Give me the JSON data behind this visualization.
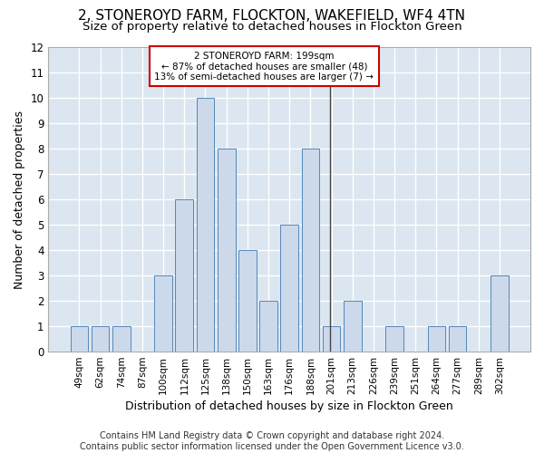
{
  "title": "2, STONEROYD FARM, FLOCKTON, WAKEFIELD, WF4 4TN",
  "subtitle": "Size of property relative to detached houses in Flockton Green",
  "xlabel": "Distribution of detached houses by size in Flockton Green",
  "ylabel": "Number of detached properties",
  "footer": "Contains HM Land Registry data © Crown copyright and database right 2024.\nContains public sector information licensed under the Open Government Licence v3.0.",
  "categories": [
    "49sqm",
    "62sqm",
    "74sqm",
    "87sqm",
    "100sqm",
    "112sqm",
    "125sqm",
    "138sqm",
    "150sqm",
    "163sqm",
    "176sqm",
    "188sqm",
    "201sqm",
    "213sqm",
    "226sqm",
    "239sqm",
    "251sqm",
    "264sqm",
    "277sqm",
    "289sqm",
    "302sqm"
  ],
  "values": [
    1,
    1,
    1,
    0,
    3,
    6,
    10,
    8,
    4,
    2,
    5,
    8,
    1,
    2,
    0,
    1,
    0,
    1,
    1,
    0,
    3
  ],
  "bar_color": "#ccd9ea",
  "bar_edge_color": "#5588bb",
  "highlight_line_color": "#444444",
  "annotation_text": "2 STONEROYD FARM: 199sqm\n← 87% of detached houses are smaller (48)\n13% of semi-detached houses are larger (7) →",
  "annotation_box_color": "#ffffff",
  "annotation_box_edge_color": "#cc0000",
  "ylim": [
    0,
    12
  ],
  "yticks": [
    0,
    1,
    2,
    3,
    4,
    5,
    6,
    7,
    8,
    9,
    10,
    11,
    12
  ],
  "background_color": "#dce6f0",
  "grid_color": "#ffffff",
  "fig_background": "#ffffff",
  "title_fontsize": 11,
  "subtitle_fontsize": 9.5,
  "axis_label_fontsize": 9,
  "tick_fontsize": 7.5,
  "footer_fontsize": 7
}
